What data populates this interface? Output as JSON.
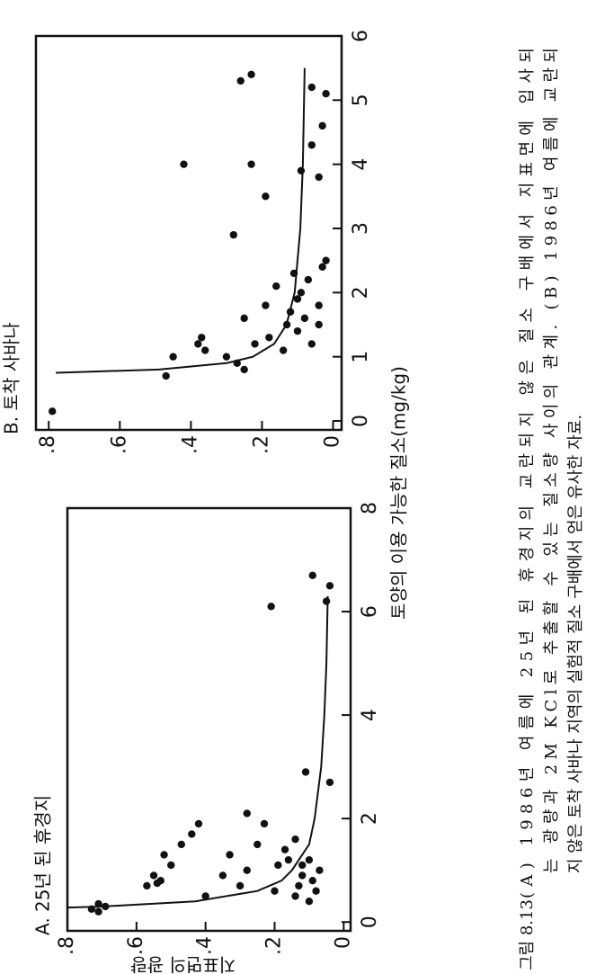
{
  "chart_data": [
    {
      "type": "scatter",
      "title": "A. 25년 된 휴경지",
      "xlim": [
        -0.17,
        8
      ],
      "xticks": [
        0,
        2,
        4,
        6,
        8
      ],
      "ylim": [
        -0.02,
        0.8
      ],
      "yticks": [
        0,
        {
          "value": 0.2,
          "label": ".2"
        },
        {
          "value": 0.4,
          "label": ".4"
        },
        {
          "value": 0.6,
          "label": ".6"
        },
        {
          "value": 0.8,
          "label": ".8"
        }
      ],
      "color": "#111111",
      "x": [
        0.2,
        0.25,
        0.3,
        0.35,
        0.7,
        0.75,
        0.8,
        0.9,
        1.1,
        1.3,
        1.5,
        1.7,
        1.9,
        0.5,
        0.9,
        1.3,
        0.7,
        1.0,
        2.1,
        1.5,
        1.9,
        0.6,
        1.1,
        1.2,
        1.4,
        0.5,
        0.7,
        0.9,
        1.1,
        1.6,
        0.4,
        0.8,
        1.2,
        1.0,
        0.6,
        2.7,
        2.9,
        6.2,
        6.5,
        6.1,
        6.7
      ],
      "values": [
        0.71,
        0.73,
        0.69,
        0.71,
        0.57,
        0.54,
        0.53,
        0.55,
        0.5,
        0.52,
        0.47,
        0.44,
        0.42,
        0.4,
        0.35,
        0.33,
        0.3,
        0.28,
        0.28,
        0.25,
        0.23,
        0.2,
        0.19,
        0.16,
        0.17,
        0.14,
        0.13,
        0.12,
        0.12,
        0.14,
        0.1,
        0.09,
        0.1,
        0.07,
        0.08,
        0.04,
        0.11,
        0.05,
        0.04,
        0.21,
        0.09
      ],
      "curve": {
        "x": [
          0.28,
          0.3,
          0.4,
          0.6,
          0.8,
          1.0,
          1.5,
          2,
          3,
          4,
          5,
          6.3
        ],
        "values": [
          0.8,
          0.7,
          0.43,
          0.25,
          0.18,
          0.15,
          0.1,
          0.084,
          0.065,
          0.056,
          0.05,
          0.046
        ]
      }
    },
    {
      "type": "scatter",
      "title": "B. 토착 사바나",
      "xlim": [
        -0.14,
        6
      ],
      "xticks": [
        0,
        1,
        2,
        3,
        4,
        5,
        6
      ],
      "ylim": [
        -0.024,
        0.836
      ],
      "yticks": [
        0,
        {
          "value": 0.2,
          "label": ".2"
        },
        {
          "value": 0.4,
          "label": ".4"
        },
        {
          "value": 0.6,
          "label": ".6"
        },
        {
          "value": 0.8,
          "label": ".8"
        }
      ],
      "color": "#111111",
      "x": [
        0.15,
        0.7,
        1.0,
        1.2,
        1.3,
        1.1,
        0.9,
        1.0,
        0.8,
        1.2,
        1.6,
        2.1,
        1.8,
        1.3,
        1.5,
        1.1,
        1.4,
        1.6,
        1.7,
        1.9,
        2.0,
        1.8,
        2.2,
        2.4,
        2.3,
        2.9,
        3.5,
        4.0,
        5.4,
        5.3,
        3.8,
        3.9,
        4.3,
        4.6,
        5.1,
        5.2,
        2.5,
        1.5,
        1.2,
        4.0
      ],
      "values": [
        0.79,
        0.47,
        0.45,
        0.38,
        0.37,
        0.36,
        0.27,
        0.3,
        0.25,
        0.22,
        0.25,
        0.16,
        0.19,
        0.18,
        0.13,
        0.14,
        0.1,
        0.08,
        0.12,
        0.1,
        0.09,
        0.04,
        0.07,
        0.03,
        0.11,
        0.28,
        0.19,
        0.23,
        0.23,
        0.26,
        0.04,
        0.09,
        0.06,
        0.03,
        0.02,
        0.06,
        0.02,
        0.04,
        0.06,
        0.42
      ],
      "curve": {
        "x": [
          0.75,
          0.8,
          0.9,
          1.0,
          1.2,
          1.5,
          2,
          3,
          4,
          5.5
        ],
        "values": [
          0.78,
          0.49,
          0.3,
          0.226,
          0.166,
          0.131,
          0.108,
          0.092,
          0.085,
          0.08
        ]
      }
    }
  ],
  "x_axis_label": "토양의 이용 가능한 질소(mg/kg)",
  "y_axis_label": "지표면의 광량",
  "caption": {
    "label": "그림 8.13",
    "lines": [
      "(A) 1986년 여름에 25년 된 휴경지의 교란되지 않은 질소 구배에서 지표면에 입사되",
      "는 광량과 2M KCl로 추출할 수 있는 질소량 사이의 관계. (B) 1986년 여름에 교란되",
      "지 않은 토착 사바나 지역의 실험적 질소 구배에서 얻은 유사한 자료."
    ]
  }
}
